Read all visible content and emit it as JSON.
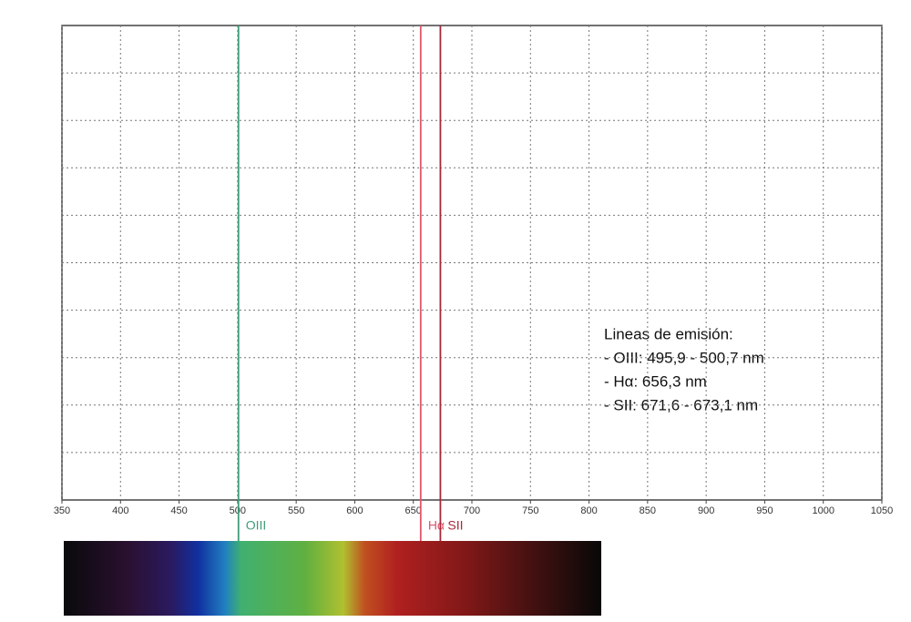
{
  "chart_data": {
    "type": "vline",
    "xlim": [
      350,
      1050
    ],
    "xticks": [
      350,
      400,
      450,
      500,
      550,
      600,
      650,
      700,
      750,
      800,
      850,
      900,
      950,
      1000,
      1050
    ],
    "grid": true,
    "lines": [
      {
        "label": "OIII",
        "x": 500.7,
        "color": "#3f9c78"
      },
      {
        "label": "Hα",
        "x": 656.3,
        "color": "#e0566a"
      },
      {
        "label": "SII",
        "x": 673.1,
        "color": "#a8283a"
      }
    ],
    "annotation": [
      "Lineas de emisión:",
      "- OIII: 495,9 - 500,7 nm",
      "- Hα: 656,3 nm",
      "- SII: 671,6 - 673,1 nm"
    ]
  }
}
